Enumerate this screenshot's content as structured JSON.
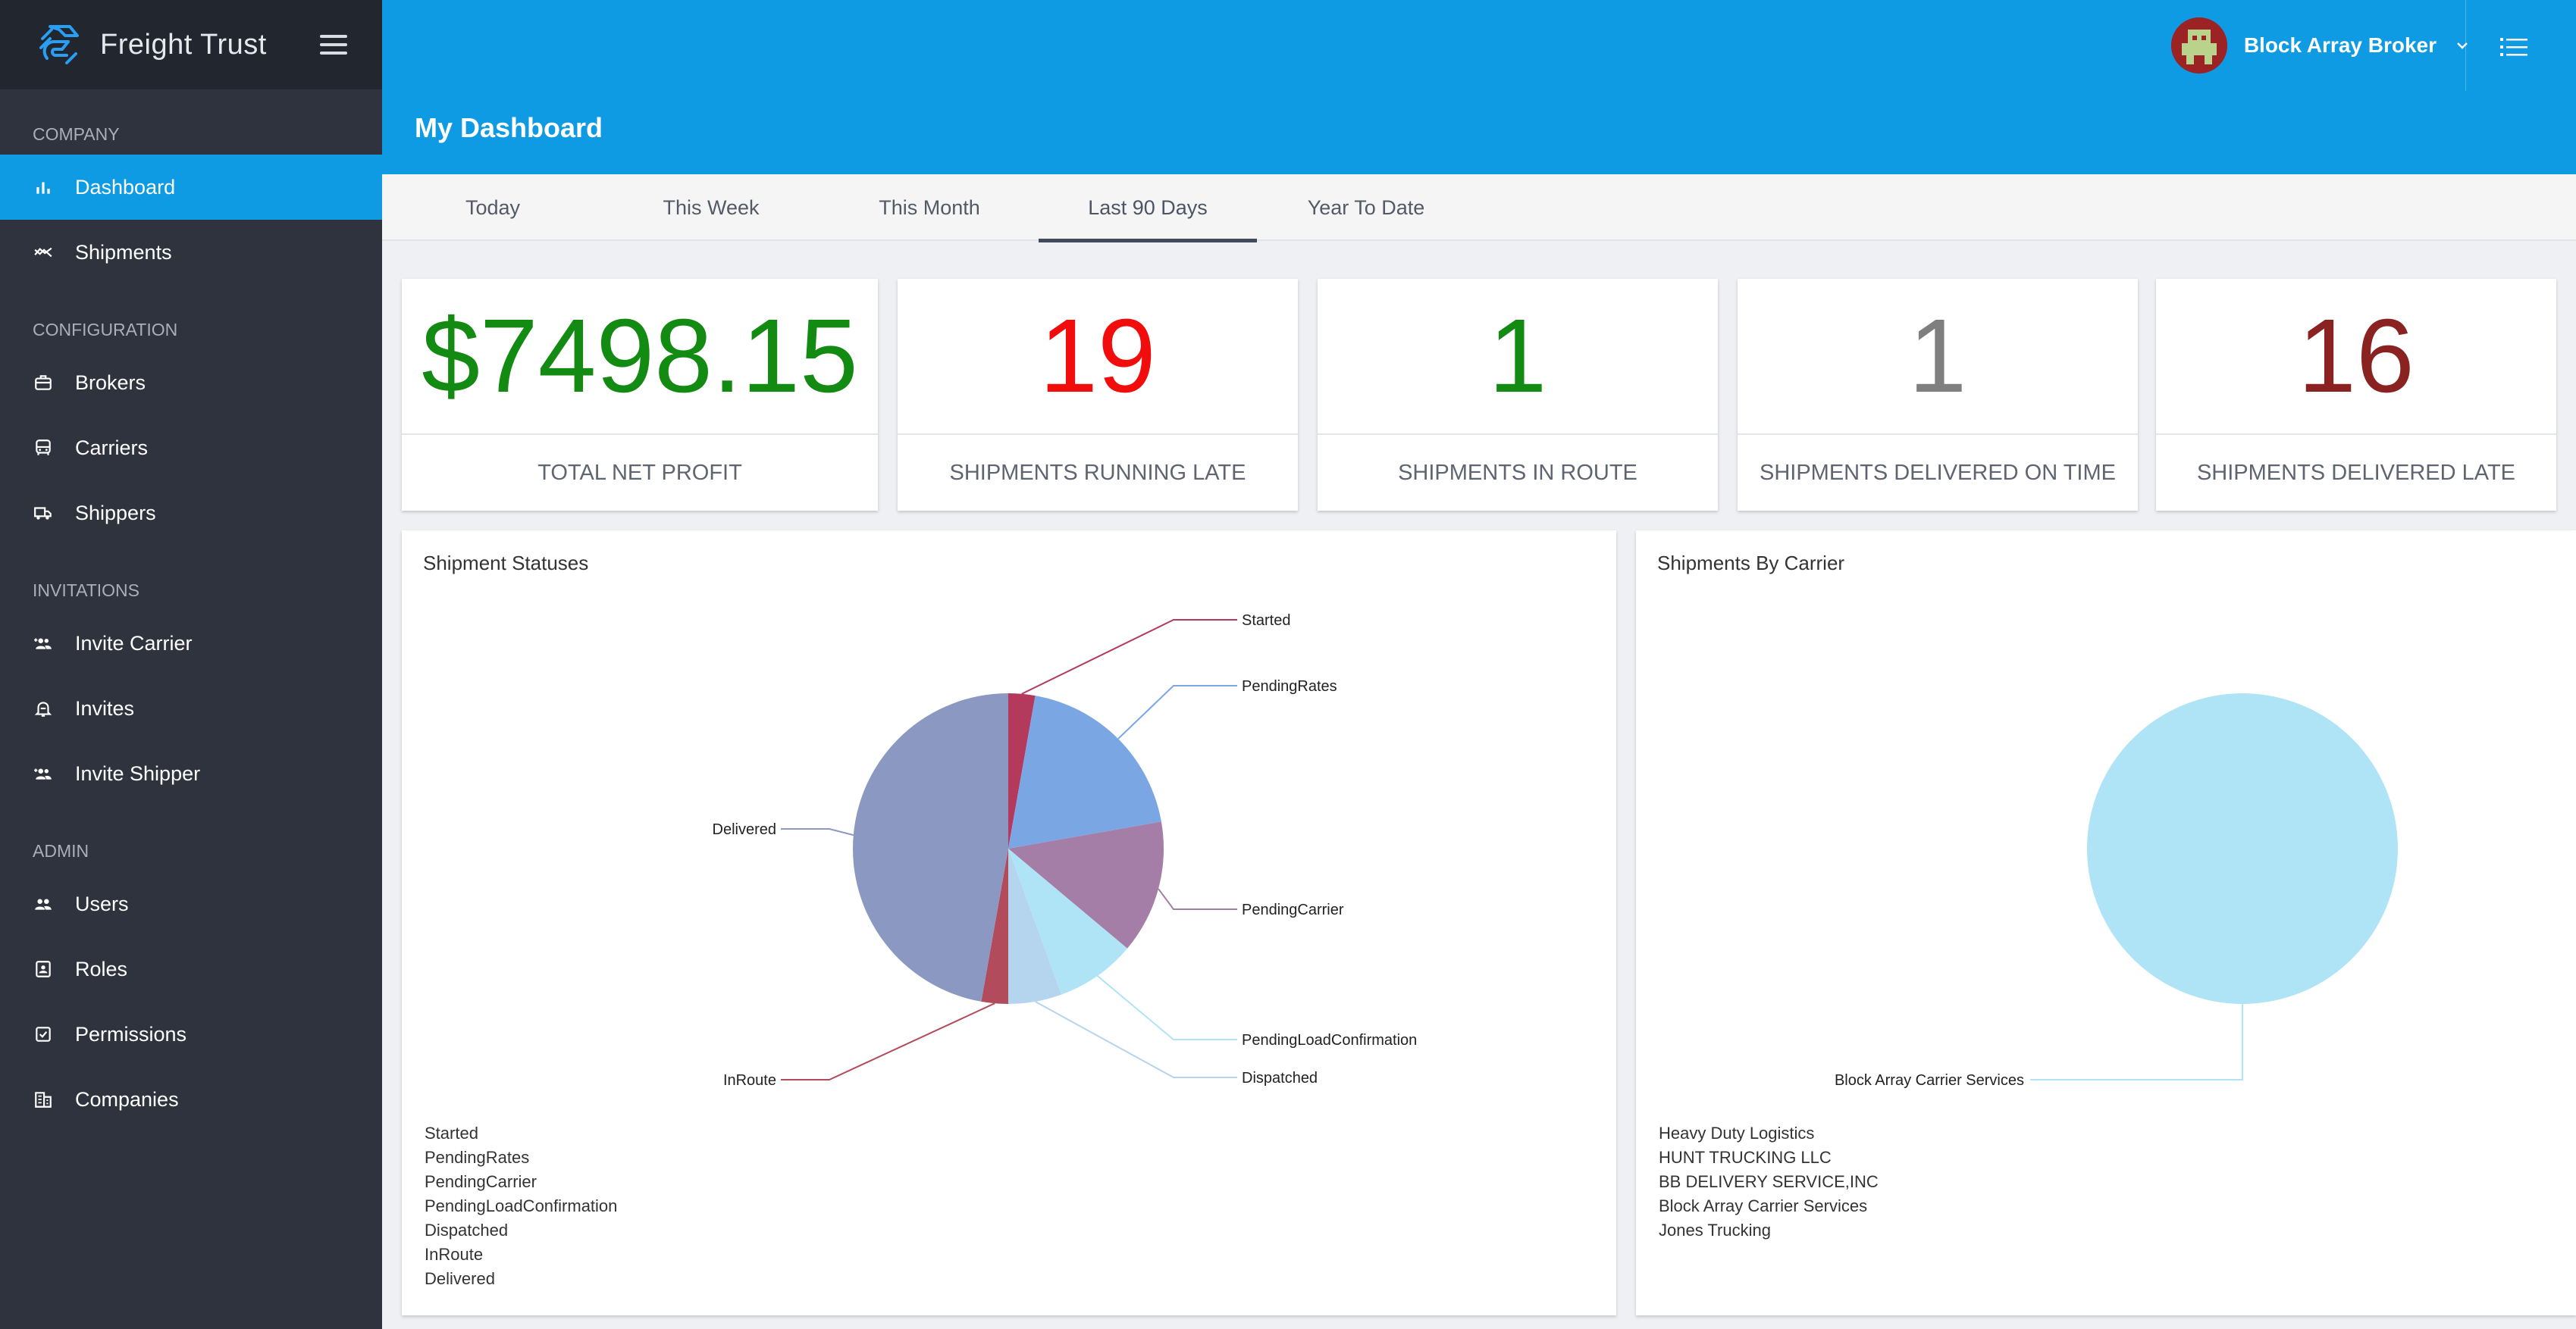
{
  "app": {
    "brand": "Freight Trust"
  },
  "sidebar": {
    "sections": [
      {
        "title": "Company",
        "items": [
          {
            "label": "Dashboard",
            "icon": "bar-chart-icon",
            "active": true
          },
          {
            "label": "Shipments",
            "icon": "trending-icon"
          }
        ]
      },
      {
        "title": "Configuration",
        "items": [
          {
            "label": "Brokers",
            "icon": "briefcase-icon"
          },
          {
            "label": "Carriers",
            "icon": "truck-front-icon"
          },
          {
            "label": "Shippers",
            "icon": "delivery-truck-icon"
          }
        ]
      },
      {
        "title": "Invitations",
        "items": [
          {
            "label": "Invite Carrier",
            "icon": "group-add-icon"
          },
          {
            "label": "Invites",
            "icon": "bell-icon"
          },
          {
            "label": "Invite Shipper",
            "icon": "group-add-icon"
          }
        ]
      },
      {
        "title": "Admin",
        "items": [
          {
            "label": "Users",
            "icon": "users-icon"
          },
          {
            "label": "Roles",
            "icon": "id-card-icon"
          },
          {
            "label": "Permissions",
            "icon": "checkbox-icon"
          },
          {
            "label": "Companies",
            "icon": "building-icon"
          }
        ]
      }
    ]
  },
  "header": {
    "user_name": "Block Array Broker",
    "page_title": "My Dashboard"
  },
  "tabs": [
    {
      "label": "Today"
    },
    {
      "label": "This Week"
    },
    {
      "label": "This Month"
    },
    {
      "label": "Last 90 Days",
      "active": true
    },
    {
      "label": "Year To Date"
    }
  ],
  "stats": [
    {
      "value": "$7498.15",
      "label": "Total Net Profit",
      "color": "#138a12"
    },
    {
      "value": "19",
      "label": "Shipments Running Late",
      "color": "#f20d0d"
    },
    {
      "value": "1",
      "label": "Shipments In Route",
      "color": "#138a12"
    },
    {
      "value": "1",
      "label": "Shipments Delivered On Time",
      "color": "#7f7f7f"
    },
    {
      "value": "16",
      "label": "Shipments Delivered Late",
      "color": "#8b2222"
    }
  ],
  "chart_data": [
    {
      "type": "pie",
      "title": "Shipment Statuses",
      "categories": [
        "Started",
        "PendingRates",
        "PendingCarrier",
        "PendingLoadConfirmation",
        "Dispatched",
        "InRoute",
        "Delivered"
      ],
      "values": [
        1,
        7,
        5,
        3,
        2,
        1,
        17
      ],
      "colors": [
        "#b33a5c",
        "#7ba6e4",
        "#a47ea6",
        "#aee4f6",
        "#b5d4ee",
        "#b24b5c",
        "#8b98c2"
      ]
    },
    {
      "type": "pie",
      "title": "Shipments By Carrier",
      "categories": [
        "Heavy Duty Logistics",
        "HUNT TRUCKING LLC",
        "BB DELIVERY SERVICE,INC",
        "Block Array Carrier Services",
        "Jones Trucking"
      ],
      "values": [
        0,
        0,
        0,
        1,
        0
      ],
      "slice_labels": [
        "Block Array Carrier Services"
      ],
      "colors": [
        "#aee4f6"
      ]
    }
  ]
}
